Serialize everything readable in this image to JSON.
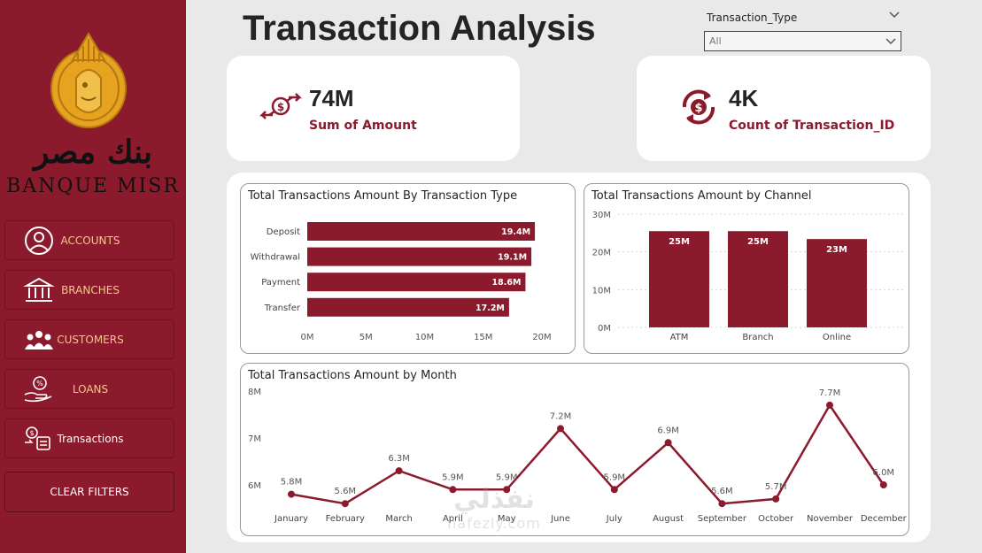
{
  "sidebar": {
    "brand_arabic": "بنك مصر",
    "brand_english": "BANQUE MISR",
    "nav": [
      {
        "label": "ACCOUNTS",
        "icon": "user-circle-icon"
      },
      {
        "label": "BRANCHES",
        "icon": "bank-building-icon"
      },
      {
        "label": "CUSTOMERS",
        "icon": "customers-group-icon"
      },
      {
        "label": "LOANS",
        "icon": "loan-money-bag-icon"
      },
      {
        "label": "Transactions",
        "icon": "transactions-icon",
        "active": true
      }
    ],
    "clear_filters": "CLEAR FILTERS"
  },
  "header": {
    "title": "Transaction Analysis"
  },
  "slicer": {
    "label": "Transaction_Type",
    "value": "All"
  },
  "kpis": [
    {
      "value": "74M",
      "label": "Sum of Amount",
      "icon": "money-exchange-icon"
    },
    {
      "value": "4K",
      "label": "Count of Transaction_ID",
      "icon": "dollar-cycle-icon"
    }
  ],
  "colors": {
    "accent": "#8c1a2d",
    "gold": "#f2c98a",
    "background": "#e9e9e9"
  },
  "chart_data": [
    {
      "type": "bar",
      "orientation": "horizontal",
      "title": "Total Transactions Amount By Transaction Type",
      "categories": [
        "Deposit",
        "Withdrawal",
        "Payment",
        "Transfer"
      ],
      "values": [
        19.4,
        19.1,
        18.6,
        17.2
      ],
      "data_labels": [
        "19.4M",
        "19.1M",
        "18.6M",
        "17.2M"
      ],
      "xlim": [
        0,
        20
      ],
      "ticks": [
        "0M",
        "5M",
        "10M",
        "15M",
        "20M"
      ]
    },
    {
      "type": "bar",
      "title": "Total Transactions Amount by Channel",
      "categories": [
        "ATM",
        "Branch",
        "Online"
      ],
      "values": [
        25.5,
        25.5,
        23.4
      ],
      "data_labels": [
        "25M",
        "25M",
        "23M"
      ],
      "ylim": [
        0,
        30
      ],
      "ticks": [
        "0M",
        "10M",
        "20M",
        "30M"
      ]
    },
    {
      "type": "line",
      "title": "Total Transactions Amount by Month",
      "categories": [
        "January",
        "February",
        "March",
        "April",
        "May",
        "June",
        "July",
        "August",
        "September",
        "October",
        "November",
        "December"
      ],
      "values": [
        5.8,
        5.6,
        6.3,
        5.9,
        5.9,
        7.2,
        5.9,
        6.9,
        5.6,
        5.7,
        7.7,
        6.0
      ],
      "data_labels": [
        "5.8M",
        "5.6M",
        "6.3M",
        "5.9M",
        "5.9M",
        "7.2M",
        "5.9M",
        "6.9M",
        "5.6M",
        "5.7M",
        "7.7M",
        "6.0M"
      ],
      "ylim": [
        5.5,
        8
      ],
      "ticks": [
        {
          "v": 6,
          "label": "6M"
        },
        {
          "v": 7,
          "label": "7M"
        },
        {
          "v": 8,
          "label": "8M"
        }
      ]
    }
  ],
  "watermark": {
    "arabic": "نفذلي",
    "english": "nafezly.com"
  }
}
